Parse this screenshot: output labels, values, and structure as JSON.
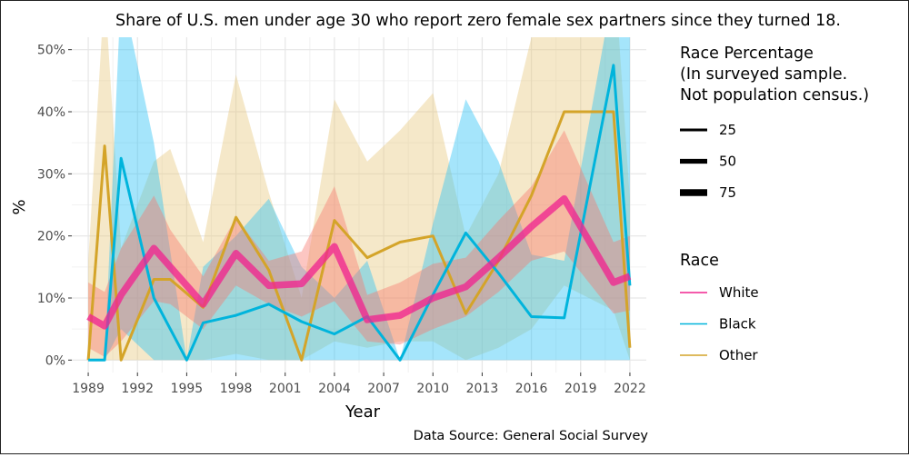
{
  "chart_data": {
    "type": "line",
    "title": "Share of U.S. men under age 30 who report zero female sex partners since they turned 18.",
    "xlabel": "Year",
    "ylabel": "%",
    "caption": "Data Source: General Social Survey",
    "xlim": [
      1988,
      2023
    ],
    "ylim": [
      -2,
      52
    ],
    "x_ticks": [
      1989,
      1992,
      1995,
      1998,
      2001,
      2004,
      2007,
      2010,
      2013,
      2016,
      2019,
      2022
    ],
    "y_ticks": [
      {
        "value": 0,
        "label": "0%"
      },
      {
        "value": 10,
        "label": "10%"
      },
      {
        "value": 20,
        "label": "20%"
      },
      {
        "value": 30,
        "label": "30%"
      },
      {
        "value": 40,
        "label": "40%"
      },
      {
        "value": 50,
        "label": "50%"
      }
    ],
    "grid": true,
    "legend_position": "right",
    "legends": {
      "size_title": "Race Percentage\n(In surveyed sample.\nNot population census.)",
      "size_entries": [
        {
          "label": "25",
          "size": 25
        },
        {
          "label": "50",
          "size": 50
        },
        {
          "label": "75",
          "size": 75
        }
      ],
      "color_title": "Race"
    },
    "series": [
      {
        "name": "White",
        "color": "#f0258f",
        "band_color": "#f8766d",
        "size": 75,
        "x": [
          1989,
          1990,
          1991,
          1993,
          1994,
          1996,
          1998,
          2000,
          2002,
          2004,
          2006,
          2008,
          2010,
          2012,
          2014,
          2016,
          2018,
          2021,
          2022
        ],
        "y": [
          7,
          5.5,
          10.5,
          18,
          15,
          9,
          17.2,
          12,
          12.3,
          18.3,
          6.5,
          7.2,
          10,
          11.8,
          16.5,
          21.5,
          26,
          12.5,
          13.5
        ],
        "lower": [
          2,
          0.5,
          3,
          9.5,
          9,
          5,
          12,
          9,
          7,
          9.5,
          3,
          2.5,
          5,
          7,
          11,
          16,
          17.5,
          7.5,
          8
        ],
        "upper": [
          12.5,
          11,
          18,
          26.5,
          21,
          13.5,
          23,
          16,
          17.5,
          28,
          10.5,
          12.5,
          15.5,
          16.5,
          22.5,
          28,
          37,
          19,
          20
        ]
      },
      {
        "name": "Black",
        "color": "#00b4dc",
        "band_color": "#29c2f5",
        "size": 25,
        "x": [
          1989,
          1990,
          1991,
          1993,
          1995,
          1996,
          1998,
          2000,
          2002,
          2004,
          2006,
          2008,
          2010,
          2012,
          2014,
          2016,
          2018,
          2021,
          2022
        ],
        "y": [
          0,
          0,
          32.5,
          10,
          0,
          6,
          7.2,
          9,
          6.2,
          4.2,
          7,
          0,
          10.5,
          20.5,
          14,
          7,
          6.8,
          47.5,
          12
        ],
        "lower": [
          0,
          0,
          5,
          0,
          0,
          0,
          0,
          0,
          0,
          0,
          0,
          0,
          0,
          0,
          0,
          0,
          0,
          0,
          0
        ],
        "upper": [
          0,
          0,
          60,
          35,
          0,
          15,
          20,
          26,
          15,
          10,
          16,
          0,
          22,
          42,
          32,
          17,
          16,
          60,
          55
        ]
      },
      {
        "name": "Other",
        "color": "#d4a429",
        "band_color": "#e8c87e",
        "size": 25,
        "x": [
          1989,
          1990,
          1991,
          1993,
          1994,
          1996,
          1998,
          2000,
          2002,
          2004,
          2006,
          2008,
          2010,
          2012,
          2014,
          2016,
          2018,
          2021,
          2022
        ],
        "y": [
          0,
          34.5,
          0,
          13,
          13,
          8.5,
          23,
          14.5,
          0,
          22.5,
          16.5,
          19,
          20,
          7.5,
          16,
          26.5,
          40,
          40,
          2
        ],
        "lower": [
          0,
          0,
          0,
          0,
          0,
          0,
          1,
          0,
          0,
          3,
          2,
          3,
          3,
          0,
          2,
          5,
          12,
          8,
          0
        ],
        "upper": [
          16,
          60,
          18,
          32,
          34,
          19,
          46,
          27,
          10,
          42,
          32,
          37,
          43,
          20,
          30,
          52,
          65,
          65,
          26
        ]
      }
    ]
  }
}
